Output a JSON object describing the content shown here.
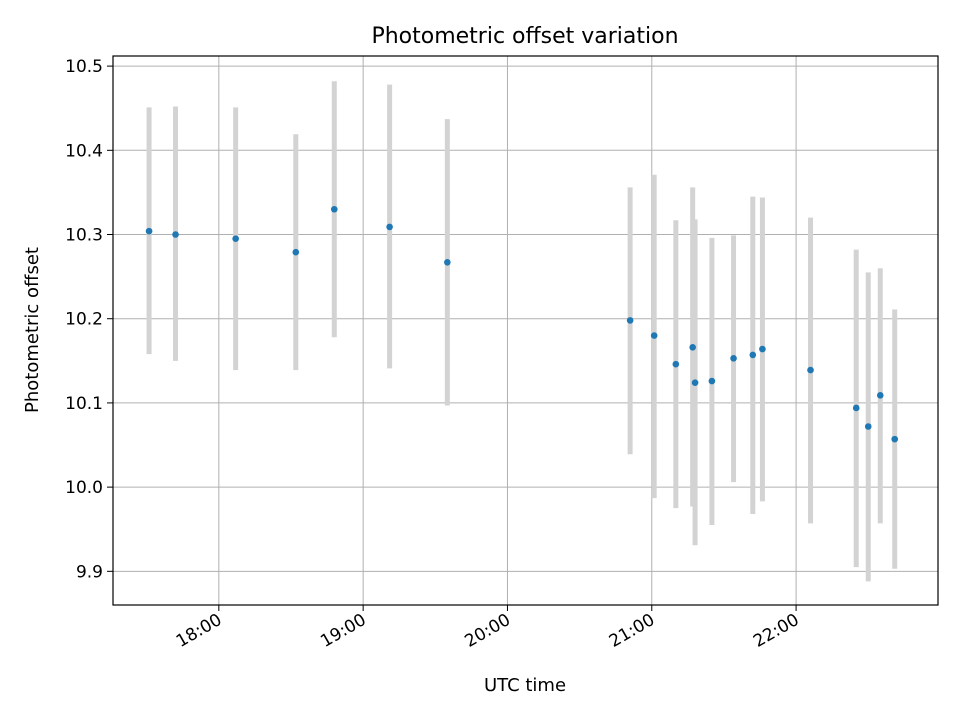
{
  "chart_data": {
    "type": "scatter",
    "title": "Photometric offset variation",
    "xlabel": "UTC time",
    "ylabel": "Photometric offset",
    "xlim": [
      "17:16",
      "22:59"
    ],
    "ylim": [
      9.86,
      10.512
    ],
    "grid": true,
    "x_ticks": [
      "18:00",
      "19:00",
      "20:00",
      "21:00",
      "22:00"
    ],
    "y_ticks": [
      "9.9",
      "10.0",
      "10.1",
      "10.2",
      "10.3",
      "10.4",
      "10.5"
    ],
    "errorbar_color": "#d3d3d3",
    "marker_color": "#1f77b4",
    "series": [
      {
        "x": [
          "17:31",
          "17:42",
          "18:07",
          "18:32",
          "18:48",
          "19:11",
          "19:35",
          "20:51",
          "21:01",
          "21:10",
          "21:17",
          "21:18",
          "21:25",
          "21:34",
          "21:42",
          "21:46",
          "22:06",
          "22:25",
          "22:30",
          "22:35",
          "22:41"
        ],
        "y": [
          10.304,
          10.3,
          10.295,
          10.279,
          10.33,
          10.309,
          10.267,
          10.198,
          10.18,
          10.146,
          10.166,
          10.124,
          10.126,
          10.153,
          10.157,
          10.164,
          10.139,
          10.094,
          10.072,
          10.109,
          10.057
        ],
        "yerr_low": [
          10.158,
          10.15,
          10.139,
          10.139,
          10.178,
          10.141,
          10.097,
          10.039,
          9.987,
          9.975,
          9.977,
          9.931,
          9.955,
          10.006,
          9.968,
          9.983,
          9.957,
          9.905,
          9.888,
          9.957,
          9.903
        ],
        "yerr_high": [
          10.451,
          10.452,
          10.451,
          10.419,
          10.482,
          10.478,
          10.437,
          10.356,
          10.371,
          10.317,
          10.356,
          10.318,
          10.296,
          10.299,
          10.345,
          10.344,
          10.32,
          10.282,
          10.255,
          10.26,
          10.211
        ]
      }
    ]
  }
}
